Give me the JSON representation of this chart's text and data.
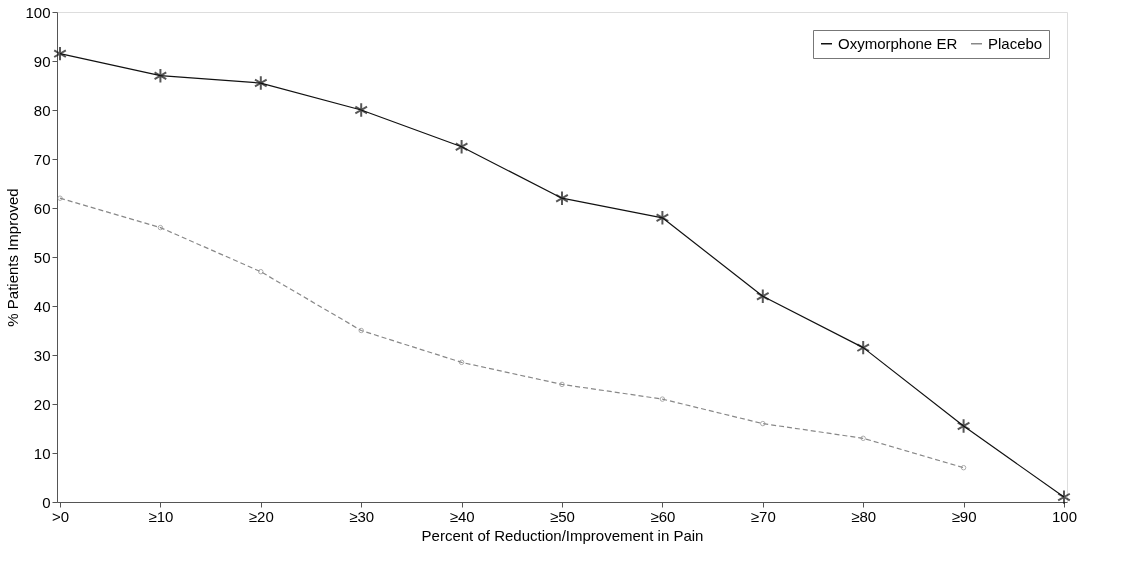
{
  "chart_data": {
    "type": "line",
    "xlabel": "Percent of Reduction/Improvement in Pain",
    "ylabel": "% Patients Improved",
    "categories": [
      ">0",
      "≥10",
      "≥20",
      "≥30",
      "≥40",
      "≥50",
      "≥60",
      "≥70",
      "≥80",
      "≥90",
      "100"
    ],
    "series": [
      {
        "name": "Oxymorphone ER",
        "color": "#111111",
        "marker": "cross",
        "line_style": "solid",
        "values": [
          91.5,
          87,
          85.5,
          80,
          72.5,
          62,
          58,
          42,
          31.5,
          15.5,
          1
        ]
      },
      {
        "name": "Placebo",
        "color": "#888888",
        "marker": "circle",
        "line_style": "dashed",
        "values": [
          62,
          56,
          47,
          35,
          28.5,
          24,
          21,
          16,
          13,
          7,
          null
        ]
      }
    ],
    "ylim": [
      0,
      100
    ],
    "yticks": [
      0,
      10,
      20,
      30,
      40,
      50,
      60,
      70,
      80,
      90,
      100
    ],
    "grid": false,
    "legend": "top right"
  }
}
